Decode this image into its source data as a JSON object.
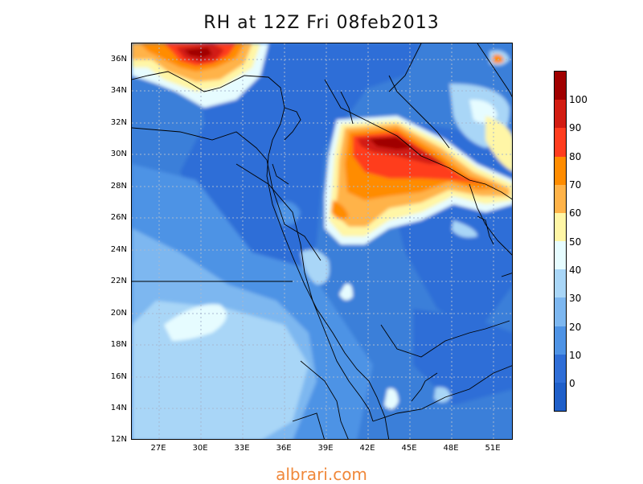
{
  "title": "RH at 12Z Fri 08feb2013",
  "watermark": "albrari.com",
  "lat_labels": [
    "36N",
    "34N",
    "32N",
    "30N",
    "28N",
    "26N",
    "24N",
    "22N",
    "20N",
    "18N",
    "16N",
    "14N",
    "12N"
  ],
  "lon_labels": [
    "27E",
    "30E",
    "33E",
    "36E",
    "39E",
    "42E",
    "45E",
    "48E",
    "51E"
  ],
  "colorbar": {
    "labels": [
      "100",
      "90",
      "80",
      "70",
      "60",
      "50",
      "40",
      "30",
      "20",
      "10",
      "0"
    ],
    "colors": [
      "#a00000",
      "#d21c12",
      "#ff3d1f",
      "#ff8c00",
      "#ffb349",
      "#fff6a6",
      "#e6fcff",
      "#a9d6f7",
      "#7db7f0",
      "#4e93e5",
      "#2f6ed7",
      "#1f5fc9"
    ]
  },
  "colors": {
    "ocean_background": "#3b7fd9",
    "grid": "#a8b8d0"
  }
}
